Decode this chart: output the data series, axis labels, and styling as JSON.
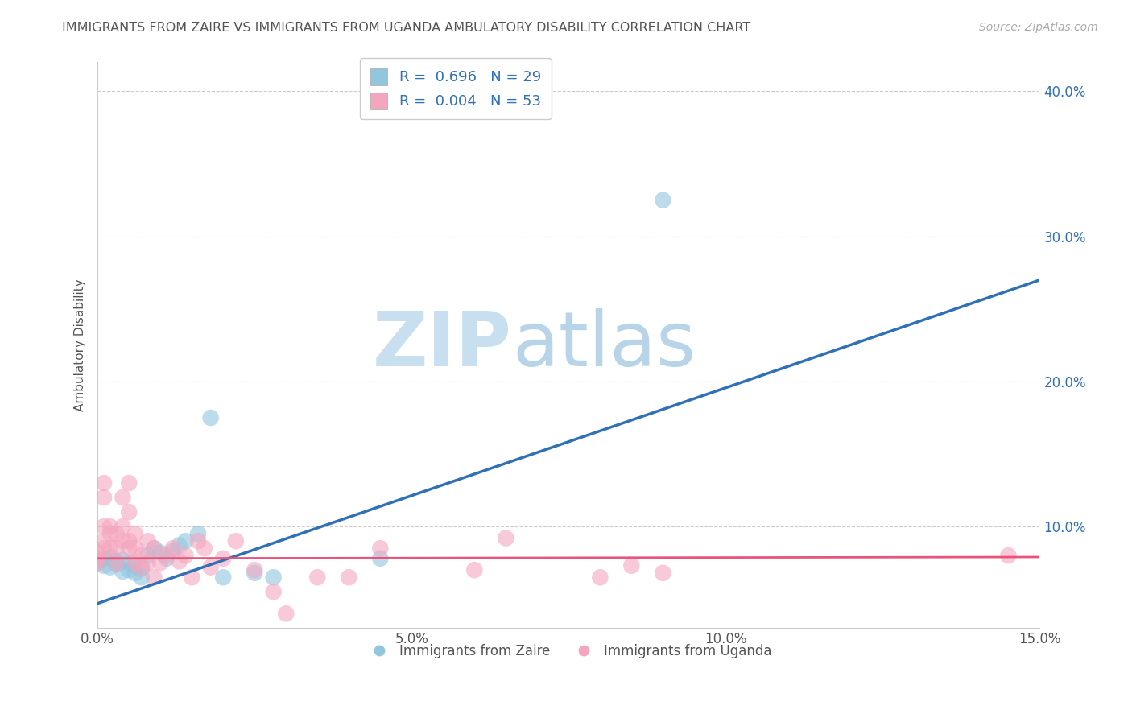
{
  "title": "IMMIGRANTS FROM ZAIRE VS IMMIGRANTS FROM UGANDA AMBULATORY DISABILITY CORRELATION CHART",
  "source": "Source: ZipAtlas.com",
  "xlabel_blue": "Immigrants from Zaire",
  "xlabel_pink": "Immigrants from Uganda",
  "ylabel": "Ambulatory Disability",
  "watermark_bold": "ZIP",
  "watermark_light": "atlas",
  "blue_R": 0.696,
  "blue_N": 29,
  "pink_R": 0.004,
  "pink_N": 53,
  "xmin": 0.0,
  "xmax": 0.15,
  "ymin": 0.03,
  "ymax": 0.42,
  "blue_color": "#92c5de",
  "pink_color": "#f4a6be",
  "blue_line_color": "#3070b5",
  "pink_line_color": "#e8547a",
  "grid_color": "#cccccc",
  "title_color": "#555555",
  "legend_R_color": "#3070b5",
  "blue_scatter_x": [
    0.0,
    0.001,
    0.001,
    0.002,
    0.002,
    0.003,
    0.003,
    0.004,
    0.004,
    0.005,
    0.005,
    0.006,
    0.006,
    0.007,
    0.007,
    0.008,
    0.009,
    0.01,
    0.011,
    0.012,
    0.013,
    0.014,
    0.016,
    0.018,
    0.02,
    0.025,
    0.028,
    0.045,
    0.09
  ],
  "blue_scatter_y": [
    0.075,
    0.073,
    0.078,
    0.072,
    0.079,
    0.074,
    0.076,
    0.069,
    0.077,
    0.07,
    0.075,
    0.068,
    0.073,
    0.065,
    0.071,
    0.08,
    0.085,
    0.082,
    0.078,
    0.083,
    0.087,
    0.09,
    0.095,
    0.175,
    0.065,
    0.068,
    0.065,
    0.078,
    0.325
  ],
  "pink_scatter_x": [
    0.0,
    0.0,
    0.0,
    0.001,
    0.001,
    0.001,
    0.001,
    0.001,
    0.002,
    0.002,
    0.002,
    0.003,
    0.003,
    0.003,
    0.004,
    0.004,
    0.004,
    0.005,
    0.005,
    0.005,
    0.005,
    0.006,
    0.006,
    0.006,
    0.007,
    0.007,
    0.008,
    0.008,
    0.009,
    0.009,
    0.01,
    0.011,
    0.012,
    0.013,
    0.014,
    0.015,
    0.016,
    0.017,
    0.018,
    0.02,
    0.022,
    0.025,
    0.028,
    0.03,
    0.035,
    0.04,
    0.045,
    0.06,
    0.065,
    0.08,
    0.085,
    0.09,
    0.145
  ],
  "pink_scatter_y": [
    0.075,
    0.078,
    0.082,
    0.085,
    0.1,
    0.12,
    0.13,
    0.09,
    0.085,
    0.095,
    0.1,
    0.075,
    0.085,
    0.095,
    0.09,
    0.1,
    0.12,
    0.085,
    0.09,
    0.11,
    0.13,
    0.075,
    0.085,
    0.095,
    0.072,
    0.08,
    0.075,
    0.09,
    0.065,
    0.085,
    0.075,
    0.08,
    0.085,
    0.076,
    0.08,
    0.065,
    0.09,
    0.085,
    0.072,
    0.078,
    0.09,
    0.07,
    0.055,
    0.04,
    0.065,
    0.065,
    0.085,
    0.07,
    0.092,
    0.065,
    0.073,
    0.068,
    0.08
  ],
  "blue_line_x": [
    0.0,
    0.15
  ],
  "blue_line_y": [
    0.047,
    0.27
  ],
  "pink_line_x": [
    0.0,
    0.15
  ],
  "pink_line_y": [
    0.078,
    0.079
  ],
  "ytick_positions": [
    0.1,
    0.2,
    0.3,
    0.4
  ],
  "ytick_labels": [
    "10.0%",
    "20.0%",
    "30.0%",
    "40.0%"
  ],
  "xticks": [
    0.0,
    0.05,
    0.1,
    0.15
  ],
  "xtick_labels": [
    "0.0%",
    "5.0%",
    "10.0%",
    "15.0%"
  ]
}
